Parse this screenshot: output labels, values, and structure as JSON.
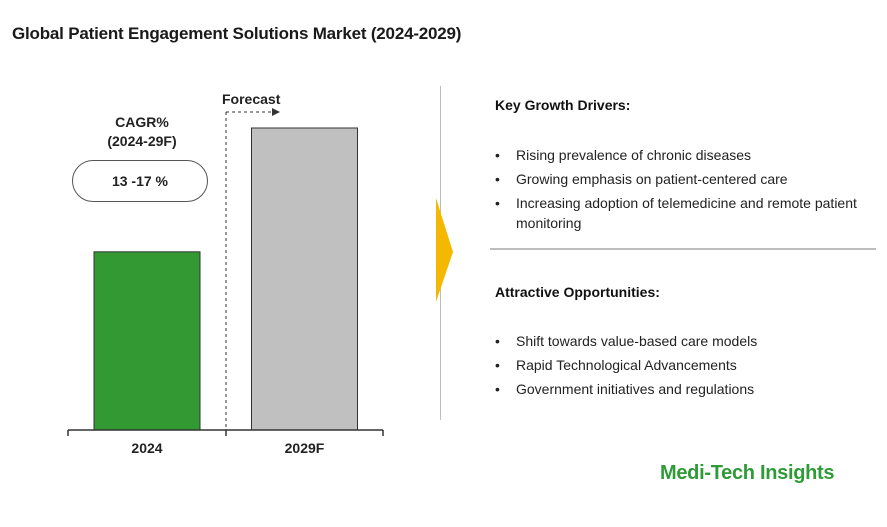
{
  "title": "Global Patient Engagement Solutions Market (2024-2029)",
  "chart_data": {
    "type": "bar",
    "categories": [
      "2024",
      "2029F"
    ],
    "relative_values": [
      0.59,
      1.0
    ],
    "colors": [
      "#339933",
      "#c0c0c0"
    ],
    "forecast_label": "Forecast",
    "forecast_starts_at": "2029F",
    "cagr": {
      "label_line1": "CAGR%",
      "label_line2": "(2024-29F)",
      "value": "13 -17 %"
    },
    "axis_labels_shown": false,
    "grid": false
  },
  "key_growth_drivers": {
    "heading": "Key Growth Drivers:",
    "items": [
      "Rising prevalence of chronic diseases",
      "Growing emphasis on patient-centered care",
      "Increasing adoption of telemedicine and remote patient monitoring"
    ]
  },
  "attractive_opportunities": {
    "heading": "Attractive Opportunities:",
    "items": [
      "Shift towards value-based care models",
      "Rapid Technological  Advancements",
      "Government initiatives and regulations"
    ]
  },
  "brand": "Medi-Tech Insights",
  "colors": {
    "accent_arrow": "#f5b800",
    "brand_green": "#2e9b37",
    "bar_2024": "#339933",
    "bar_2029": "#c0c0c0"
  }
}
